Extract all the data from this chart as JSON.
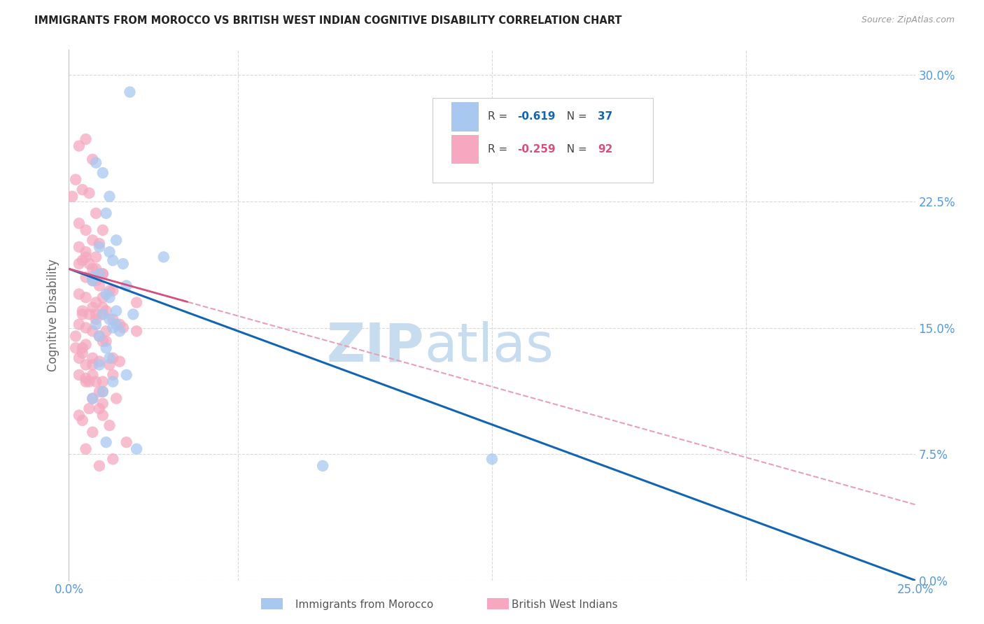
{
  "title": "IMMIGRANTS FROM MOROCCO VS BRITISH WEST INDIAN COGNITIVE DISABILITY CORRELATION CHART",
  "source": "Source: ZipAtlas.com",
  "ylabel": "Cognitive Disability",
  "ytick_values": [
    0.0,
    7.5,
    15.0,
    22.5,
    30.0
  ],
  "xlim": [
    0.0,
    25.0
  ],
  "ylim": [
    0.0,
    31.5
  ],
  "legend_blue_r": "-0.619",
  "legend_blue_n": "37",
  "legend_pink_r": "-0.259",
  "legend_pink_n": "92",
  "blue_color": "#a8c8f0",
  "pink_color": "#f5a8c0",
  "trendline_blue": "#1464b4",
  "trendline_pink": "#d45080",
  "trendline_pink_dashed": "#e8a0b8",
  "watermark_zip_color": "#c8dcf0",
  "watermark_atlas_color": "#c8dcf0",
  "background_color": "#ffffff",
  "grid_color": "#d8d8d8",
  "axis_color": "#c0c0c0",
  "tick_color": "#5599dd",
  "blue_scatter_x": [
    1.8,
    0.8,
    1.0,
    1.2,
    1.1,
    1.4,
    0.9,
    1.2,
    1.3,
    1.6,
    0.9,
    0.7,
    0.7,
    1.7,
    1.1,
    1.2,
    1.4,
    1.0,
    1.2,
    0.8,
    2.8,
    1.3,
    1.5,
    0.9,
    1.1,
    1.9,
    1.4,
    1.2,
    0.9,
    1.7,
    1.1,
    2.0,
    7.5,
    12.5,
    1.3,
    1.0,
    0.7
  ],
  "blue_scatter_y": [
    29.0,
    24.8,
    24.2,
    22.8,
    21.8,
    20.2,
    19.8,
    19.5,
    19.0,
    18.8,
    18.2,
    18.0,
    17.8,
    17.5,
    17.0,
    16.8,
    16.0,
    15.8,
    15.5,
    15.2,
    19.2,
    15.0,
    14.8,
    14.5,
    13.8,
    15.8,
    15.2,
    13.2,
    12.8,
    12.2,
    8.2,
    7.8,
    6.8,
    7.2,
    11.8,
    11.2,
    10.8
  ],
  "pink_scatter_x": [
    0.1,
    0.3,
    0.5,
    0.7,
    0.2,
    0.4,
    0.6,
    0.8,
    0.3,
    0.5,
    0.7,
    0.9,
    0.3,
    0.5,
    0.8,
    1.0,
    0.4,
    0.6,
    0.8,
    1.0,
    0.5,
    0.7,
    0.9,
    1.2,
    0.3,
    0.5,
    0.8,
    1.0,
    0.4,
    0.6,
    0.8,
    1.1,
    0.3,
    0.5,
    0.7,
    1.0,
    1.3,
    1.6,
    2.0,
    0.2,
    0.4,
    0.7,
    0.9,
    1.2,
    0.3,
    0.5,
    0.8,
    1.0,
    0.5,
    0.7,
    1.0,
    1.3,
    0.3,
    0.4,
    0.6,
    0.9,
    1.1,
    0.3,
    0.5,
    0.8,
    1.0,
    0.2,
    0.4,
    0.7,
    1.0,
    1.5,
    0.4,
    0.7,
    0.9,
    1.3,
    0.5,
    0.8,
    1.1,
    1.5,
    0.6,
    0.9,
    1.2,
    1.7,
    0.7,
    1.0,
    1.3,
    2.0,
    0.5,
    0.7,
    1.0,
    1.4,
    0.5,
    0.9,
    1.3,
    0.3,
    0.7,
    1.0
  ],
  "pink_scatter_y": [
    22.8,
    25.8,
    26.2,
    25.0,
    23.8,
    23.2,
    23.0,
    21.8,
    21.2,
    20.8,
    20.2,
    20.0,
    19.8,
    19.5,
    19.2,
    20.8,
    19.0,
    18.8,
    18.5,
    18.2,
    18.0,
    17.8,
    17.5,
    17.2,
    17.0,
    16.8,
    16.5,
    16.2,
    16.0,
    15.8,
    15.5,
    16.0,
    15.2,
    15.0,
    14.8,
    15.8,
    15.5,
    15.0,
    14.8,
    13.8,
    13.5,
    13.2,
    13.0,
    12.8,
    12.2,
    12.0,
    11.8,
    14.2,
    14.0,
    10.8,
    10.5,
    12.2,
    9.8,
    9.5,
    10.2,
    11.2,
    14.8,
    18.8,
    19.2,
    17.8,
    16.8,
    14.5,
    13.8,
    12.2,
    11.2,
    15.2,
    15.8,
    16.2,
    14.5,
    13.2,
    12.8,
    15.8,
    14.2,
    13.0,
    11.8,
    10.2,
    9.2,
    8.2,
    18.5,
    18.2,
    17.2,
    16.5,
    7.8,
    8.8,
    9.8,
    10.8,
    11.8,
    6.8,
    7.2,
    13.2,
    12.8,
    11.8
  ],
  "blue_trendline_x0": 0.0,
  "blue_trendline_y0": 18.5,
  "blue_trendline_x1": 25.0,
  "blue_trendline_y1": 0.0,
  "pink_trendline_x0": 0.0,
  "pink_trendline_y0": 18.5,
  "pink_trendline_x1": 25.0,
  "pink_trendline_y1": 4.5
}
